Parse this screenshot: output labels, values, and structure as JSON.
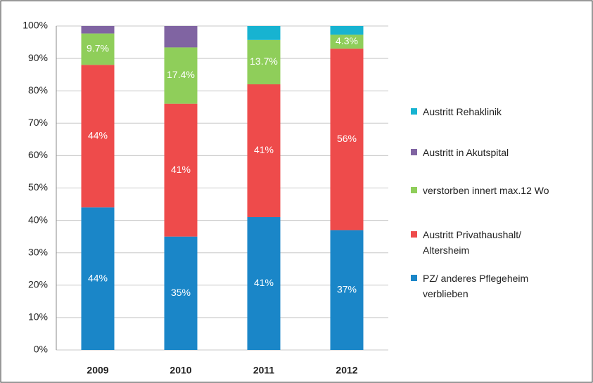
{
  "chart_data": {
    "type": "stacked_bar",
    "categories": [
      "2009",
      "2010",
      "2011",
      "2012"
    ],
    "series": [
      {
        "name": "PZ/ anderes Pflegeheim verblieben",
        "color": "#1a86c8",
        "values": [
          44,
          35,
          41,
          37
        ],
        "value_labels": [
          "44%",
          "35%",
          "41%",
          "37%"
        ]
      },
      {
        "name": "Austritt Privathaushalt/ Altersheim",
        "color": "#ee4b4b",
        "values": [
          44,
          41,
          41,
          56
        ],
        "value_labels": [
          "44%",
          "41%",
          "41%",
          "56%"
        ]
      },
      {
        "name": "verstorben innert max.12 Wo",
        "color": "#8fce5a",
        "values": [
          9.7,
          17.4,
          13.7,
          4.3
        ],
        "value_labels": [
          "9.7%",
          "17.4%",
          "13.7%",
          "4.3%"
        ]
      },
      {
        "name": "Austritt in Akutspital",
        "color": "#8064a2",
        "values": [
          2.3,
          6.6,
          0,
          0
        ]
      },
      {
        "name": "Austritt Rehaklinik",
        "color": "#17b3d1",
        "values": [
          0,
          0,
          4.3,
          2.7
        ]
      }
    ],
    "ylim": [
      0,
      100
    ],
    "yticks": [
      {
        "value": 0,
        "label": "0%"
      },
      {
        "value": 10,
        "label": "10%"
      },
      {
        "value": 20,
        "label": "20%"
      },
      {
        "value": 30,
        "label": "30%"
      },
      {
        "value": 40,
        "label": "40%"
      },
      {
        "value": 50,
        "label": "50%"
      },
      {
        "value": 60,
        "label": "60%"
      },
      {
        "value": 70,
        "label": "70%"
      },
      {
        "value": 80,
        "label": "80%"
      },
      {
        "value": 90,
        "label": "90%"
      },
      {
        "value": 100,
        "label": "100%"
      }
    ],
    "grid": true,
    "legend": "right"
  }
}
